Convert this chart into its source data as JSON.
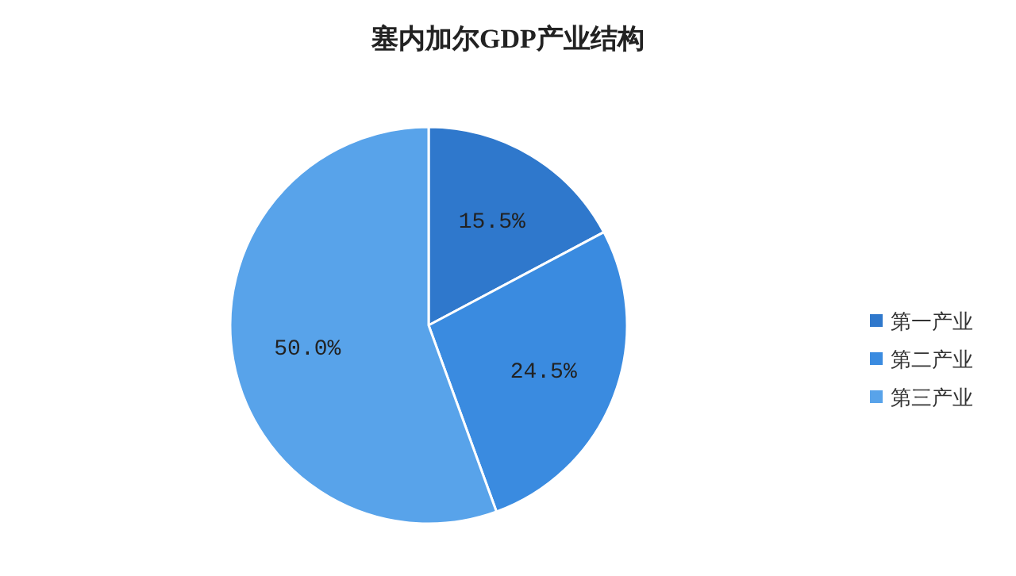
{
  "chart_data": {
    "type": "pie",
    "title": "塞内加尔GDP产业结构",
    "categories": [
      "第一产业",
      "第二产业",
      "第三产业"
    ],
    "values": [
      15.5,
      24.5,
      50.0
    ],
    "colors": [
      "#2f78cc",
      "#3a8be0",
      "#58a3ea"
    ],
    "value_labels": [
      "15.5%",
      "24.5%",
      "50.0%"
    ],
    "legend": "right"
  }
}
